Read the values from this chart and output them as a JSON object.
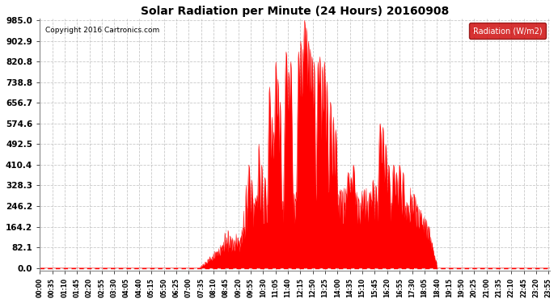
{
  "title": "Solar Radiation per Minute (24 Hours) 20160908",
  "copyright": "Copyright 2016 Cartronics.com",
  "legend_label": "Radiation (W/m2)",
  "yticks": [
    0.0,
    82.1,
    164.2,
    246.2,
    328.3,
    410.4,
    492.5,
    574.6,
    656.7,
    738.8,
    820.8,
    902.9,
    985.0
  ],
  "ymax": 985.0,
  "fill_color": "#FF0000",
  "line_color": "#FF0000",
  "grid_color": "#BBBBBB",
  "bg_color": "#FFFFFF",
  "title_color": "#000000",
  "copyright_color": "#000000",
  "legend_bg": "#CC0000",
  "legend_text_color": "#FFFFFF",
  "x_tick_interval_minutes": 35,
  "total_minutes": 1440,
  "figwidth": 6.9,
  "figheight": 3.75,
  "dpi": 100
}
